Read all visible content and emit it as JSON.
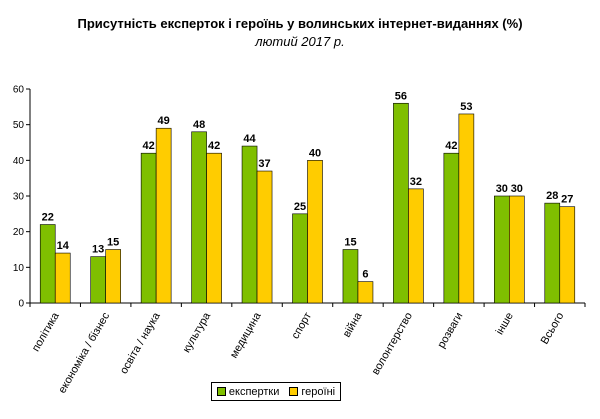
{
  "chart_data": {
    "type": "bar",
    "title": "Присутність експерток і героїнь у волинських інтернет-виданнях (%)",
    "subtitle": "лютий 2017 р.",
    "categories": [
      "політика",
      "економіка / бізнес",
      "освіта / наука",
      "культура",
      "медицина",
      "спорт",
      "війна",
      "волонтерство",
      "розваги",
      "інше",
      "Всього"
    ],
    "series": [
      {
        "name": "експертки",
        "color": "#7fbf00",
        "values": [
          22,
          13,
          42,
          48,
          44,
          25,
          15,
          56,
          42,
          30,
          28
        ]
      },
      {
        "name": "героїні",
        "color": "#ffcc00",
        "values": [
          14,
          15,
          49,
          42,
          37,
          40,
          6,
          32,
          53,
          30,
          27
        ]
      }
    ],
    "ylim": [
      0,
      60
    ],
    "yticks": [
      0,
      10,
      20,
      30,
      40,
      50,
      60
    ],
    "grid": false,
    "legend_position": "bottom-center"
  }
}
